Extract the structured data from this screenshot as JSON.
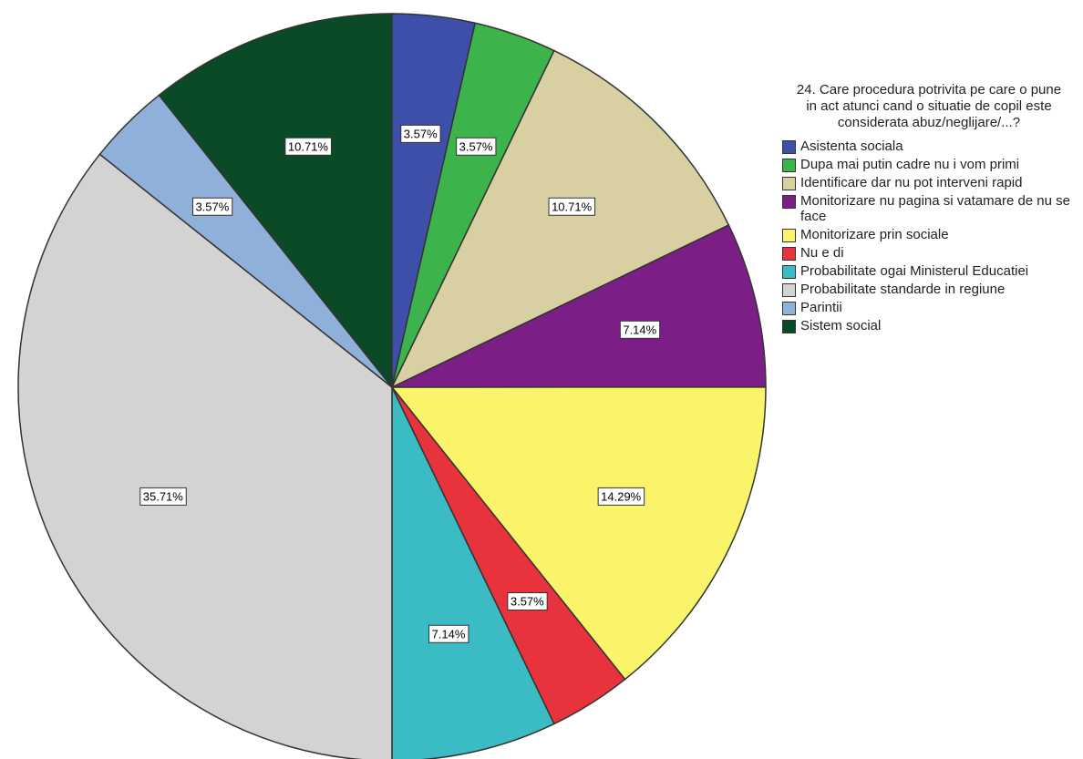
{
  "chart_data": {
    "type": "pie",
    "title": "24. Care procedura potrivita pe care o pune in act atunci cand o situatie de copil este considerata abuz/neglijare/...?",
    "categories": [
      "Asistenta sociala",
      "Dupa mai putin cadre nu i vom primi",
      "Identificare dar nu pot interveni rapid",
      "Monitorizare nu pagina si vatamare de nu se face",
      "Monitorizare prin sociale",
      "Nu e di",
      "Probabilitate ogai Ministerul Educatiei",
      "Probabilitate standarde in regiune",
      "Parintii",
      "Sistem social"
    ],
    "values": [
      3.57,
      3.57,
      10.71,
      7.14,
      14.29,
      3.57,
      7.14,
      35.71,
      3.57,
      10.71
    ],
    "value_labels": [
      "3.57%",
      "3.57%",
      "10.71%",
      "7.14%",
      "14.29%",
      "3.57%",
      "7.14%",
      "35.71%",
      "3.57%",
      "10.71%"
    ],
    "colors": [
      "#3d4fa8",
      "#3cb44b",
      "#d8cfa2",
      "#7b1f86",
      "#faf46a",
      "#e8323c",
      "#3bbcc4",
      "#d3d3d3",
      "#8eb0d9",
      "#0b4a27"
    ]
  }
}
